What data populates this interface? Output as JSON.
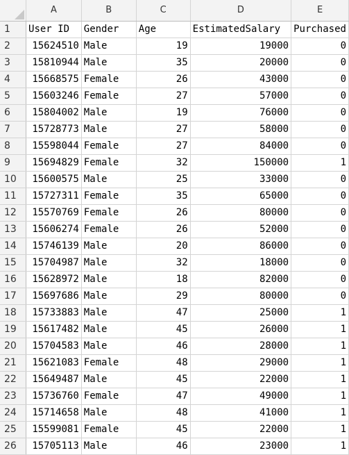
{
  "columns": [
    "A",
    "B",
    "C",
    "D",
    "E"
  ],
  "headers": [
    "User ID",
    "Gender",
    "Age",
    "EstimatedSalary",
    "Purchased"
  ],
  "rows": [
    {
      "n": "2",
      "id": "15624510",
      "gender": "Male",
      "age": "19",
      "salary": "19000",
      "purchased": "0"
    },
    {
      "n": "3",
      "id": "15810944",
      "gender": "Male",
      "age": "35",
      "salary": "20000",
      "purchased": "0"
    },
    {
      "n": "4",
      "id": "15668575",
      "gender": "Female",
      "age": "26",
      "salary": "43000",
      "purchased": "0"
    },
    {
      "n": "5",
      "id": "15603246",
      "gender": "Female",
      "age": "27",
      "salary": "57000",
      "purchased": "0"
    },
    {
      "n": "6",
      "id": "15804002",
      "gender": "Male",
      "age": "19",
      "salary": "76000",
      "purchased": "0"
    },
    {
      "n": "7",
      "id": "15728773",
      "gender": "Male",
      "age": "27",
      "salary": "58000",
      "purchased": "0"
    },
    {
      "n": "8",
      "id": "15598044",
      "gender": "Female",
      "age": "27",
      "salary": "84000",
      "purchased": "0"
    },
    {
      "n": "9",
      "id": "15694829",
      "gender": "Female",
      "age": "32",
      "salary": "150000",
      "purchased": "1"
    },
    {
      "n": "10",
      "id": "15600575",
      "gender": "Male",
      "age": "25",
      "salary": "33000",
      "purchased": "0"
    },
    {
      "n": "11",
      "id": "15727311",
      "gender": "Female",
      "age": "35",
      "salary": "65000",
      "purchased": "0"
    },
    {
      "n": "12",
      "id": "15570769",
      "gender": "Female",
      "age": "26",
      "salary": "80000",
      "purchased": "0"
    },
    {
      "n": "13",
      "id": "15606274",
      "gender": "Female",
      "age": "26",
      "salary": "52000",
      "purchased": "0"
    },
    {
      "n": "14",
      "id": "15746139",
      "gender": "Male",
      "age": "20",
      "salary": "86000",
      "purchased": "0"
    },
    {
      "n": "15",
      "id": "15704987",
      "gender": "Male",
      "age": "32",
      "salary": "18000",
      "purchased": "0"
    },
    {
      "n": "16",
      "id": "15628972",
      "gender": "Male",
      "age": "18",
      "salary": "82000",
      "purchased": "0"
    },
    {
      "n": "17",
      "id": "15697686",
      "gender": "Male",
      "age": "29",
      "salary": "80000",
      "purchased": "0"
    },
    {
      "n": "18",
      "id": "15733883",
      "gender": "Male",
      "age": "47",
      "salary": "25000",
      "purchased": "1"
    },
    {
      "n": "19",
      "id": "15617482",
      "gender": "Male",
      "age": "45",
      "salary": "26000",
      "purchased": "1"
    },
    {
      "n": "20",
      "id": "15704583",
      "gender": "Male",
      "age": "46",
      "salary": "28000",
      "purchased": "1"
    },
    {
      "n": "21",
      "id": "15621083",
      "gender": "Female",
      "age": "48",
      "salary": "29000",
      "purchased": "1"
    },
    {
      "n": "22",
      "id": "15649487",
      "gender": "Male",
      "age": "45",
      "salary": "22000",
      "purchased": "1"
    },
    {
      "n": "23",
      "id": "15736760",
      "gender": "Female",
      "age": "47",
      "salary": "49000",
      "purchased": "1"
    },
    {
      "n": "24",
      "id": "15714658",
      "gender": "Male",
      "age": "48",
      "salary": "41000",
      "purchased": "1"
    },
    {
      "n": "25",
      "id": "15599081",
      "gender": "Female",
      "age": "45",
      "salary": "22000",
      "purchased": "1"
    },
    {
      "n": "26",
      "id": "15705113",
      "gender": "Male",
      "age": "46",
      "salary": "23000",
      "purchased": "1"
    }
  ]
}
